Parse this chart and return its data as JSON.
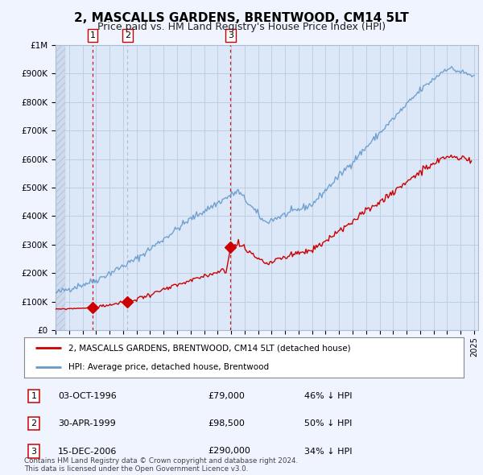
{
  "title": "2, MASCALLS GARDENS, BRENTWOOD, CM14 5LT",
  "subtitle": "Price paid vs. HM Land Registry's House Price Index (HPI)",
  "title_fontsize": 11,
  "subtitle_fontsize": 9,
  "ylabel_ticks": [
    "£0",
    "£100K",
    "£200K",
    "£300K",
    "£400K",
    "£500K",
    "£600K",
    "£700K",
    "£800K",
    "£900K",
    "£1M"
  ],
  "ytick_values": [
    0,
    100000,
    200000,
    300000,
    400000,
    500000,
    600000,
    700000,
    800000,
    900000,
    1000000
  ],
  "ylim": [
    0,
    1000000
  ],
  "xlim_start": 1994.0,
  "xlim_end": 2025.3,
  "sale_dates": [
    1996.75,
    1999.33,
    2006.96
  ],
  "sale_prices": [
    79000,
    98500,
    290000
  ],
  "sale_labels": [
    "1",
    "2",
    "3"
  ],
  "vline_styles": [
    "red_dashed",
    "blue_dashed",
    "red_dashed"
  ],
  "legend_label_red": "2, MASCALLS GARDENS, BRENTWOOD, CM14 5LT (detached house)",
  "legend_label_blue": "HPI: Average price, detached house, Brentwood",
  "table_rows": [
    [
      "1",
      "03-OCT-1996",
      "£79,000",
      "46% ↓ HPI"
    ],
    [
      "2",
      "30-APR-1999",
      "£98,500",
      "50% ↓ HPI"
    ],
    [
      "3",
      "15-DEC-2006",
      "£290,000",
      "34% ↓ HPI"
    ]
  ],
  "footnote": "Contains HM Land Registry data © Crown copyright and database right 2024.\nThis data is licensed under the Open Government Licence v3.0.",
  "bg_color": "#f0f4ff",
  "plot_bg": "#dce8f8",
  "red_color": "#cc0000",
  "blue_color": "#6699cc",
  "blue_vline_color": "#aabbdd",
  "grid_color": "#b8cce0",
  "hatch_color": "#b8c8e0"
}
